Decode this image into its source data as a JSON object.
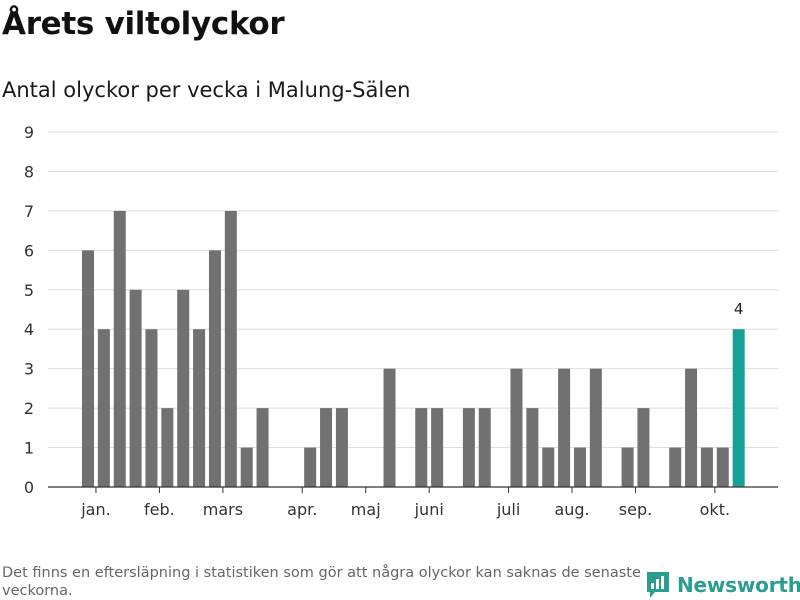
{
  "header": {
    "title": "Årets viltolyckor",
    "subtitle": "Antal olyckor per vecka i Malung-Sälen"
  },
  "footer": {
    "note": "Det finns en eftersläpning i statistiken som gör att några olyckor kan saknas de senaste veckorna.",
    "brand": "Newsworthy"
  },
  "colors": {
    "bar": "#717073",
    "highlight": "#16a096",
    "grid": "#dedede",
    "axis": "#333333",
    "brand": "#2a9d8f"
  },
  "chart_data": {
    "type": "bar",
    "title": "Antal olyckor per vecka i Malung-Sälen",
    "xlabel": "",
    "ylabel": "",
    "ylim": [
      0,
      9
    ],
    "yticks": [
      0,
      1,
      2,
      3,
      4,
      5,
      6,
      7,
      8,
      9
    ],
    "grid": true,
    "values": [
      6,
      4,
      7,
      5,
      4,
      2,
      5,
      4,
      6,
      7,
      1,
      2,
      0,
      0,
      1,
      2,
      2,
      0,
      0,
      3,
      0,
      2,
      2,
      0,
      2,
      2,
      0,
      3,
      2,
      1,
      3,
      1,
      3,
      0,
      1,
      2,
      0,
      1,
      3,
      1,
      1,
      4
    ],
    "month_labels": [
      {
        "label": "jan.",
        "week_index": 0.5
      },
      {
        "label": "feb.",
        "week_index": 4.5
      },
      {
        "label": "mars",
        "week_index": 8.5
      },
      {
        "label": "apr.",
        "week_index": 13.5
      },
      {
        "label": "maj",
        "week_index": 17.5
      },
      {
        "label": "juni",
        "week_index": 21.5
      },
      {
        "label": "juli",
        "week_index": 26.5
      },
      {
        "label": "aug.",
        "week_index": 30.5
      },
      {
        "label": "sep.",
        "week_index": 34.5
      },
      {
        "label": "okt.",
        "week_index": 39.5
      }
    ],
    "highlight": {
      "week_index": 41,
      "value": 4,
      "label": "4"
    }
  }
}
